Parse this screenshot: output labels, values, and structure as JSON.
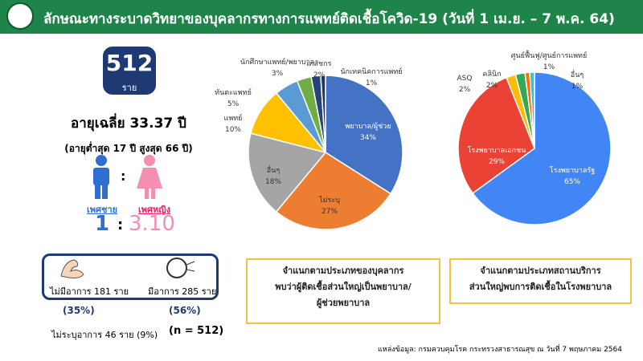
{
  "header": {
    "title": "ลักษณะทางระบาดวิทยาของบุคลากรทางการแพทย์ติดเชื้อโควิด-19 (วันที่ 1 เม.ย. – 7 พ.ค. 64)"
  },
  "summary": {
    "total": "512",
    "total_unit": "ราย",
    "avg_age": "อายุเฉลี่ย 33.37 ปี",
    "age_range": "(อายุต่ำสุด 17 ปี สูงสุด 66 ปี)",
    "male_label": "เพศชาย",
    "female_label": "เพศหญิง",
    "male_ratio": "1",
    "female_ratio": "3.10",
    "ratio_sep": ":",
    "asymptomatic": "ไม่มีอาการ 181 ราย",
    "symptomatic": "มีอาการ 285 ราย",
    "asymptomatic_pct": "(35%)",
    "symptomatic_pct": "(56%)",
    "unknown": "ไม่ระบุอาการ 46 ราย (9%)",
    "n": "(n = 512)"
  },
  "chart_data": [
    {
      "type": "pie",
      "categories": [
        "พยาบาล/ผู้ช่วย",
        "ไม่ระบุ",
        "อื่นๆ",
        "แพทย์",
        "ทันตะแพทย์",
        "นักศึกษาแพทย์/พยาบาล",
        "เภสัชกร",
        "นักเทคนิคการแพทย์"
      ],
      "values": [
        34,
        27,
        18,
        10,
        5,
        3,
        2,
        1
      ],
      "value_labels": [
        "34%",
        "27%",
        "18%",
        "10%",
        "5%",
        "3%",
        "2%",
        "1%"
      ],
      "colors": [
        "#4472c4",
        "#ed7d31",
        "#a5a5a5",
        "#ffc000",
        "#5b9bd5",
        "#70ad47",
        "#264478",
        "#1f3864"
      ],
      "caption": [
        "จำแนกตามประเภทของบุคลากร",
        "พบว่าผู้ติดเชื้อส่วนใหญ่เป็นพยาบาล/",
        "ผู้ช่วยพยาบาล"
      ]
    },
    {
      "type": "pie",
      "categories": [
        "โรงพยาบาลรัฐ",
        "โรงพยาบาลเอกชน",
        "ASQ",
        "คลินิก",
        "ศูนย์ฟื้นฟู/ศูนย์การแพทย์",
        "อื่นๆ"
      ],
      "values": [
        65,
        29,
        2,
        2,
        1,
        1
      ],
      "value_labels": [
        "65%",
        "29%",
        "2%",
        "2%",
        "1%",
        "1%"
      ],
      "colors": [
        "#4285f4",
        "#ea4335",
        "#fbbc04",
        "#34a853",
        "#ff6d01",
        "#46bdc6"
      ],
      "caption": [
        "จำแนกตามประเภทสถานบริการ",
        "ส่วนใหญ่พบการติดเชื้อในโรงพยาบาล"
      ]
    }
  ],
  "source": "แหล่งข้อมูล: กรมควบคุมโรค กระทรวงสาธารณสุข ณ วันที่ 7 พฤษภาคม 2564"
}
